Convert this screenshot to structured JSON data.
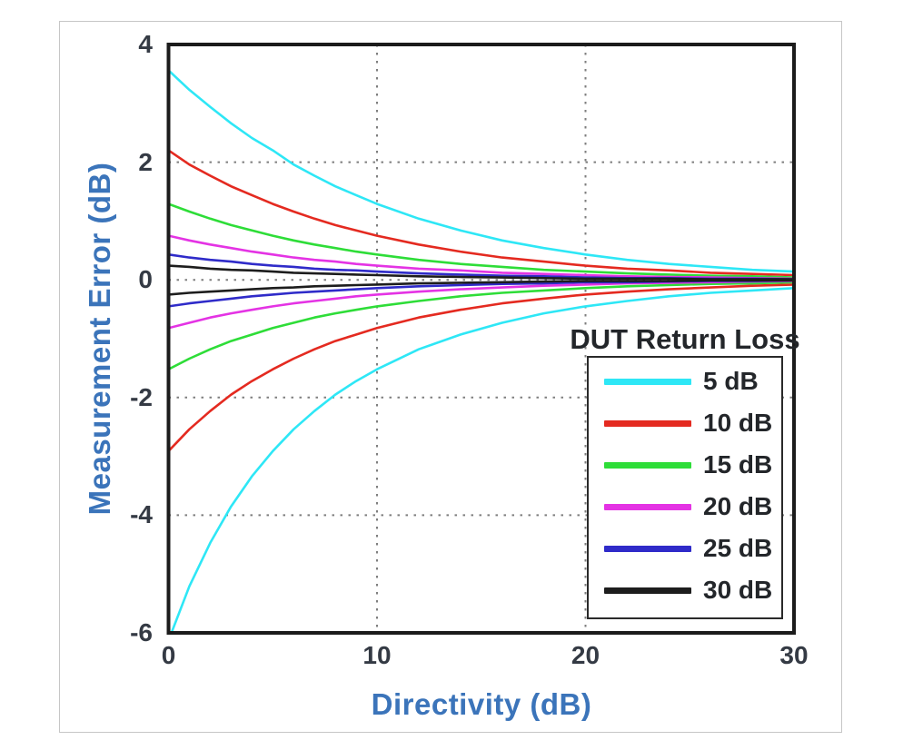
{
  "colors": {
    "axis_title": "#3B74BA",
    "tick_label": "#343A44",
    "plot_border": "#1B1B1B",
    "gridline": "#7E7E7E",
    "legend_border": "#2A2A2A",
    "legend_text": "#23262A",
    "card_border": "#C6C6C6"
  },
  "chart_data": {
    "type": "line",
    "title": "",
    "xlabel": "Directivity (dB)",
    "ylabel": "Measurement Error (dB)",
    "legend_title": "DUT Return Loss",
    "legend_position": "lower right",
    "grid": "dotted",
    "xlim": [
      0,
      30
    ],
    "ylim": [
      -6,
      4
    ],
    "xticks": [
      0,
      10,
      20,
      30
    ],
    "yticks": [
      4,
      2,
      0,
      -2,
      -4,
      -6
    ],
    "x_gridlines": [
      10,
      20
    ],
    "y_gridlines": [
      2,
      0,
      -2,
      -4
    ],
    "x": [
      0,
      1,
      2,
      3,
      4,
      5,
      6,
      7,
      8,
      9,
      10,
      12,
      14,
      16,
      18,
      20,
      22,
      24,
      26,
      28,
      30
    ],
    "series": [
      {
        "name": "5 dB",
        "color": "#2EE7F6",
        "upper": [
          3.56,
          3.23,
          2.94,
          2.66,
          2.41,
          2.2,
          1.96,
          1.77,
          1.59,
          1.44,
          1.29,
          1.04,
          0.84,
          0.67,
          0.54,
          0.43,
          0.34,
          0.27,
          0.22,
          0.17,
          0.14
        ],
        "lower": [
          -6.13,
          -5.21,
          -4.47,
          -3.85,
          -3.34,
          -2.91,
          -2.54,
          -2.23,
          -1.95,
          -1.72,
          -1.52,
          -1.18,
          -0.93,
          -0.73,
          -0.57,
          -0.45,
          -0.36,
          -0.28,
          -0.22,
          -0.18,
          -0.14
        ]
      },
      {
        "name": "10 dB",
        "color": "#E42A20",
        "upper": [
          2.2,
          1.96,
          1.77,
          1.59,
          1.44,
          1.29,
          1.16,
          1.04,
          0.93,
          0.84,
          0.75,
          0.6,
          0.48,
          0.38,
          0.31,
          0.24,
          0.19,
          0.16,
          0.12,
          0.1,
          0.08
        ],
        "lower": [
          -2.91,
          -2.54,
          -2.23,
          -1.95,
          -1.72,
          -1.52,
          -1.34,
          -1.18,
          -1.04,
          -0.93,
          -0.82,
          -0.64,
          -0.51,
          -0.4,
          -0.32,
          -0.25,
          -0.2,
          -0.16,
          -0.13,
          -0.1,
          -0.08
        ]
      },
      {
        "name": "15 dB",
        "color": "#2EDD38",
        "upper": [
          1.29,
          1.16,
          1.04,
          0.93,
          0.84,
          0.75,
          0.67,
          0.6,
          0.54,
          0.48,
          0.43,
          0.34,
          0.27,
          0.22,
          0.17,
          0.14,
          0.11,
          0.09,
          0.07,
          0.06,
          0.04
        ],
        "lower": [
          -1.52,
          -1.34,
          -1.18,
          -1.04,
          -0.93,
          -0.82,
          -0.73,
          -0.64,
          -0.57,
          -0.51,
          -0.45,
          -0.36,
          -0.28,
          -0.22,
          -0.18,
          -0.14,
          -0.11,
          -0.09,
          -0.07,
          -0.06,
          -0.04
        ]
      },
      {
        "name": "20 dB",
        "color": "#E433E4",
        "upper": [
          0.75,
          0.67,
          0.6,
          0.54,
          0.48,
          0.43,
          0.38,
          0.34,
          0.31,
          0.27,
          0.24,
          0.19,
          0.16,
          0.12,
          0.1,
          0.08,
          0.06,
          0.05,
          0.04,
          0.03,
          0.02
        ],
        "lower": [
          -0.82,
          -0.73,
          -0.64,
          -0.57,
          -0.51,
          -0.45,
          -0.4,
          -0.36,
          -0.32,
          -0.28,
          -0.25,
          -0.2,
          -0.16,
          -0.13,
          -0.1,
          -0.08,
          -0.06,
          -0.05,
          -0.04,
          -0.03,
          -0.02
        ]
      },
      {
        "name": "25 dB",
        "color": "#2F2BC9",
        "upper": [
          0.43,
          0.38,
          0.34,
          0.31,
          0.27,
          0.24,
          0.22,
          0.19,
          0.17,
          0.16,
          0.14,
          0.11,
          0.09,
          0.07,
          0.06,
          0.04,
          0.03,
          0.03,
          0.02,
          0.02,
          0.01
        ],
        "lower": [
          -0.45,
          -0.4,
          -0.36,
          -0.32,
          -0.28,
          -0.25,
          -0.22,
          -0.2,
          -0.18,
          -0.16,
          -0.14,
          -0.11,
          -0.09,
          -0.07,
          -0.06,
          -0.04,
          -0.04,
          -0.03,
          -0.02,
          -0.02,
          -0.01
        ]
      },
      {
        "name": "30 dB",
        "color": "#1D1D1D",
        "upper": [
          0.24,
          0.22,
          0.19,
          0.17,
          0.16,
          0.14,
          0.12,
          0.11,
          0.1,
          0.09,
          0.08,
          0.06,
          0.05,
          0.04,
          0.03,
          0.02,
          0.02,
          0.02,
          0.01,
          0.01,
          0.01
        ],
        "lower": [
          -0.25,
          -0.22,
          -0.2,
          -0.18,
          -0.16,
          -0.14,
          -0.13,
          -0.11,
          -0.1,
          -0.09,
          -0.08,
          -0.06,
          -0.05,
          -0.04,
          -0.03,
          -0.02,
          -0.02,
          -0.02,
          -0.01,
          -0.01,
          -0.01
        ]
      }
    ]
  }
}
